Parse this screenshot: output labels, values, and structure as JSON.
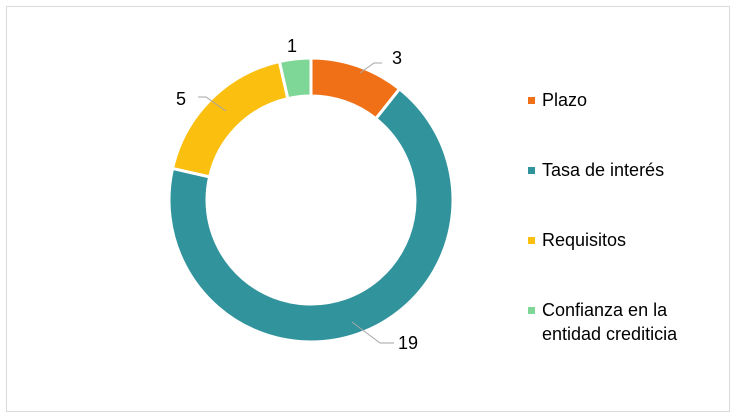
{
  "chart_data": {
    "type": "pie",
    "title": "",
    "categories": [
      "Plazo",
      "Tasa de interés",
      "Requisitos",
      "Confianza en la entidad crediticia"
    ],
    "values": [
      3,
      19,
      5,
      1
    ],
    "colors": [
      "#f07018",
      "#31939c",
      "#fbbf10",
      "#7ed697"
    ],
    "hole": true,
    "legend_position": "right",
    "legend": [
      {
        "label": "Plazo",
        "color": "#f07018"
      },
      {
        "label": "Tasa de interés",
        "color": "#31939c"
      },
      {
        "label": "Requisitos",
        "color": "#fbbf10"
      },
      {
        "label": "Confianza en la entidad crediticia",
        "lines": [
          "Confianza en la",
          "entidad crediticia"
        ],
        "color": "#7ed697"
      }
    ],
    "data_labels": [
      "3",
      "19",
      "5",
      "1"
    ]
  }
}
